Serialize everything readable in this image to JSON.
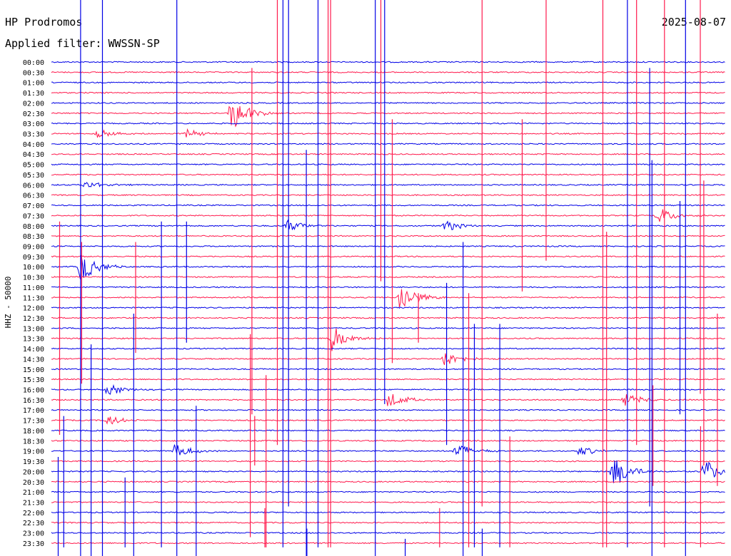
{
  "header": {
    "station": "HP Prodromos",
    "date": "2025-08-07",
    "filter": "Applied filter: WWSSN-SP"
  },
  "colors": {
    "trace_a": "#0000e6",
    "trace_b": "#ff1a4d",
    "background": "#ffffff",
    "text": "#000000"
  },
  "chart_data": {
    "type": "line",
    "title": "HP Prodromos",
    "ylabel": "HHZ - 50000",
    "row_labels": [
      "00:00",
      "00:30",
      "01:00",
      "01:30",
      "02:00",
      "02:30",
      "03:00",
      "03:30",
      "04:00",
      "04:30",
      "05:00",
      "05:30",
      "06:00",
      "06:30",
      "07:00",
      "07:30",
      "08:00",
      "08:30",
      "09:00",
      "09:30",
      "10:00",
      "10:30",
      "11:00",
      "11:30",
      "12:00",
      "12:30",
      "13:00",
      "13:30",
      "14:00",
      "14:30",
      "15:00",
      "15:30",
      "16:00",
      "16:30",
      "17:00",
      "17:30",
      "18:00",
      "18:30",
      "19:00",
      "19:30",
      "20:00",
      "20:30",
      "21:00",
      "21:30",
      "22:00",
      "22:30",
      "23:00",
      "23:30"
    ],
    "row_colors": [
      "trace_a",
      "trace_b"
    ],
    "events": [
      {
        "row": "02:30",
        "minute": 8,
        "amplitude": 0.9
      },
      {
        "row": "03:30",
        "minute": 2,
        "amplitude": 0.25
      },
      {
        "row": "03:30",
        "minute": 6,
        "amplitude": 0.2
      },
      {
        "row": "06:00",
        "minute": 1.5,
        "amplitude": 0.2
      },
      {
        "row": "07:30",
        "minute": 27,
        "amplitude": 0.4
      },
      {
        "row": "08:00",
        "minute": 10.5,
        "amplitude": 0.3
      },
      {
        "row": "08:00",
        "minute": 17.5,
        "amplitude": 0.3
      },
      {
        "row": "10:00",
        "minute": 1.3,
        "amplitude": 0.75
      },
      {
        "row": "11:30",
        "minute": 15.5,
        "amplitude": 0.75
      },
      {
        "row": "13:30",
        "minute": 12.5,
        "amplitude": 0.65
      },
      {
        "row": "14:30",
        "minute": 17.5,
        "amplitude": 0.4
      },
      {
        "row": "16:00",
        "minute": 2.5,
        "amplitude": 0.3
      },
      {
        "row": "16:30",
        "minute": 15,
        "amplitude": 0.4
      },
      {
        "row": "16:30",
        "minute": 25.5,
        "amplitude": 0.35
      },
      {
        "row": "17:30",
        "minute": 2.5,
        "amplitude": 0.25
      },
      {
        "row": "19:00",
        "minute": 5.5,
        "amplitude": 0.35
      },
      {
        "row": "19:00",
        "minute": 18,
        "amplitude": 0.4
      },
      {
        "row": "19:00",
        "minute": 23.5,
        "amplitude": 0.25
      },
      {
        "row": "20:00",
        "minute": 25,
        "amplitude": 0.85
      },
      {
        "row": "20:00",
        "minute": 29,
        "amplitude": 0.6
      }
    ]
  }
}
